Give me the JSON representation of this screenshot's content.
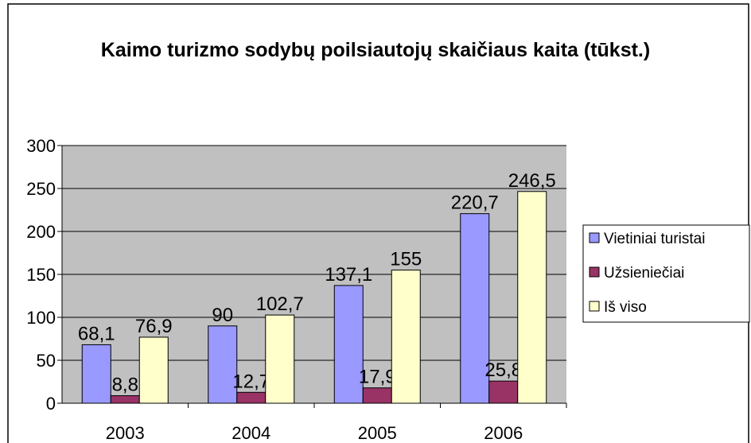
{
  "chart_data": {
    "type": "bar",
    "title": "Kaimo turizmo sodybų poilsiautojų skaičiaus kaita (tūkst.)",
    "categories": [
      "2003",
      "2004",
      "2005",
      "2006"
    ],
    "series": [
      {
        "name": "Vietiniai turistai",
        "color": "#9999ff",
        "values": [
          68.1,
          90,
          137.1,
          220.7
        ],
        "value_labels": [
          "68,1",
          "90",
          "137,1",
          "220,7"
        ]
      },
      {
        "name": "Užsieniečiai",
        "color": "#993366",
        "values": [
          8.8,
          12.7,
          17.9,
          25.8
        ],
        "value_labels": [
          "8,8",
          "12,7",
          "17,9",
          "25,8"
        ]
      },
      {
        "name": "Iš viso",
        "color": "#ffffcc",
        "values": [
          76.9,
          102.7,
          155,
          246.5
        ],
        "value_labels": [
          "76,9",
          "102,7",
          "155",
          "246,5"
        ]
      }
    ],
    "ylim": [
      0,
      300
    ],
    "yticks": [
      0,
      50,
      100,
      150,
      200,
      250,
      300
    ],
    "grid": true,
    "legend": "right"
  }
}
